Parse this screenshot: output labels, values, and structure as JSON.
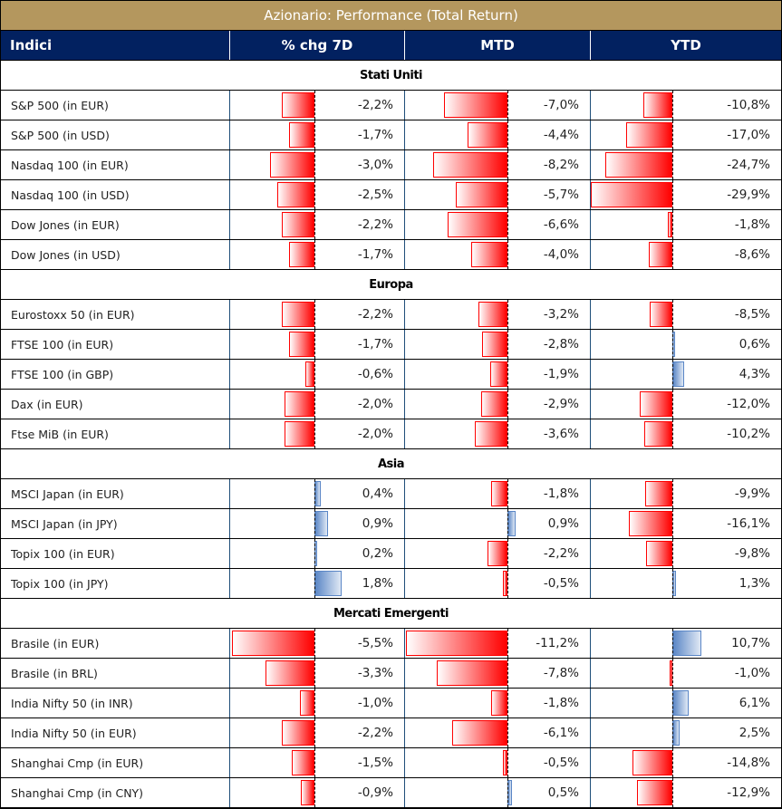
{
  "title": "Azionario: Performance (Total Return)",
  "columns": [
    "Indici",
    "% chg 7D",
    "MTD",
    "YTD"
  ],
  "colors": {
    "title_bg": "#b4975e",
    "header_bg": "#022160",
    "negative": "#ff0000",
    "positive": "#5a86c6"
  },
  "sections": [
    {
      "name": "Stati Uniti",
      "rows": [
        {
          "label": "S&P 500 (in EUR)",
          "v": [
            -2.2,
            -7.0,
            -10.8
          ],
          "t": [
            "-2,2%",
            "-7,0%",
            "-10,8%"
          ]
        },
        {
          "label": "S&P 500 (in USD)",
          "v": [
            -1.7,
            -4.4,
            -17.0
          ],
          "t": [
            "-1,7%",
            "-4,4%",
            "-17,0%"
          ]
        },
        {
          "label": "Nasdaq 100 (in EUR)",
          "v": [
            -3.0,
            -8.2,
            -24.7
          ],
          "t": [
            "-3,0%",
            "-8,2%",
            "-24,7%"
          ]
        },
        {
          "label": "Nasdaq 100 (in USD)",
          "v": [
            -2.5,
            -5.7,
            -29.9
          ],
          "t": [
            "-2,5%",
            "-5,7%",
            "-29,9%"
          ]
        },
        {
          "label": "Dow Jones (in EUR)",
          "v": [
            -2.2,
            -6.6,
            -1.8
          ],
          "t": [
            "-2,2%",
            "-6,6%",
            "-1,8%"
          ]
        },
        {
          "label": "Dow Jones (in USD)",
          "v": [
            -1.7,
            -4.0,
            -8.6
          ],
          "t": [
            "-1,7%",
            "-4,0%",
            "-8,6%"
          ]
        }
      ]
    },
    {
      "name": "Europa",
      "rows": [
        {
          "label": "Eurostoxx 50 (in EUR)",
          "v": [
            -2.2,
            -3.2,
            -8.5
          ],
          "t": [
            "-2,2%",
            "-3,2%",
            "-8,5%"
          ]
        },
        {
          "label": "FTSE 100 (in EUR)",
          "v": [
            -1.7,
            -2.8,
            0.6
          ],
          "t": [
            "-1,7%",
            "-2,8%",
            "0,6%"
          ]
        },
        {
          "label": "FTSE 100 (in GBP)",
          "v": [
            -0.6,
            -1.9,
            4.3
          ],
          "t": [
            "-0,6%",
            "-1,9%",
            "4,3%"
          ]
        },
        {
          "label": "Dax (in EUR)",
          "v": [
            -2.0,
            -2.9,
            -12.0
          ],
          "t": [
            "-2,0%",
            "-2,9%",
            "-12,0%"
          ]
        },
        {
          "label": "Ftse MiB (in EUR)",
          "v": [
            -2.0,
            -3.6,
            -10.2
          ],
          "t": [
            "-2,0%",
            "-3,6%",
            "-10,2%"
          ]
        }
      ]
    },
    {
      "name": "Asia",
      "rows": [
        {
          "label": "MSCI Japan (in EUR)",
          "v": [
            0.4,
            -1.8,
            -9.9
          ],
          "t": [
            "0,4%",
            "-1,8%",
            "-9,9%"
          ]
        },
        {
          "label": "MSCI Japan (in JPY)",
          "v": [
            0.9,
            0.9,
            -16.1
          ],
          "t": [
            "0,9%",
            "0,9%",
            "-16,1%"
          ]
        },
        {
          "label": "Topix 100 (in EUR)",
          "v": [
            0.2,
            -2.2,
            -9.8
          ],
          "t": [
            "0,2%",
            "-2,2%",
            "-9,8%"
          ]
        },
        {
          "label": "Topix 100 (in JPY)",
          "v": [
            1.8,
            -0.5,
            1.3
          ],
          "t": [
            "1,8%",
            "-0,5%",
            "1,3%"
          ]
        }
      ]
    },
    {
      "name": "Mercati Emergenti",
      "rows": [
        {
          "label": "Brasile (in EUR)",
          "v": [
            -5.5,
            -11.2,
            10.7
          ],
          "t": [
            "-5,5%",
            "-11,2%",
            "10,7%"
          ]
        },
        {
          "label": "Brasile (in BRL)",
          "v": [
            -3.3,
            -7.8,
            -1.0
          ],
          "t": [
            "-3,3%",
            "-7,8%",
            "-1,0%"
          ]
        },
        {
          "label": "India Nifty 50 (in INR)",
          "v": [
            -1.0,
            -1.8,
            6.1
          ],
          "t": [
            "-1,0%",
            "-1,8%",
            "6,1%"
          ]
        },
        {
          "label": "India Nifty 50 (in EUR)",
          "v": [
            -2.2,
            -6.1,
            2.5
          ],
          "t": [
            "-2,2%",
            "-6,1%",
            "2,5%"
          ]
        },
        {
          "label": "Shanghai Cmp (in EUR)",
          "v": [
            -1.5,
            -0.5,
            -14.8
          ],
          "t": [
            "-1,5%",
            "-0,5%",
            "-14,8%"
          ]
        },
        {
          "label": "Shanghai Cmp (in CNY)",
          "v": [
            -0.9,
            0.5,
            -12.9
          ],
          "t": [
            "-0,9%",
            "0,5%",
            "-12,9%"
          ]
        }
      ]
    }
  ]
}
